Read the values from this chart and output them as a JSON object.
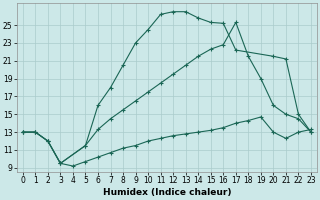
{
  "xlabel": "Humidex (Indice chaleur)",
  "background_color": "#cce8e8",
  "grid_color": "#aacccc",
  "line_color": "#1a6655",
  "line1_x": [
    0,
    1,
    2,
    3,
    5,
    6,
    7,
    8,
    9,
    10,
    11,
    12,
    13,
    14,
    15,
    16,
    17,
    20,
    21,
    22,
    23
  ],
  "line1_y": [
    13.0,
    13.0,
    12.0,
    9.5,
    11.5,
    16.0,
    18.0,
    20.5,
    23.0,
    24.5,
    26.2,
    26.5,
    26.5,
    25.8,
    25.3,
    25.2,
    22.2,
    21.5,
    21.2,
    15.0,
    13.0
  ],
  "line2_x": [
    0,
    1,
    2,
    3,
    5,
    6,
    7,
    8,
    9,
    10,
    11,
    12,
    13,
    14,
    15,
    16,
    17,
    18,
    19,
    20,
    21,
    22,
    23
  ],
  "line2_y": [
    13.0,
    13.0,
    12.0,
    9.5,
    11.5,
    13.3,
    14.5,
    15.5,
    16.5,
    17.5,
    18.5,
    19.5,
    20.5,
    21.5,
    22.3,
    22.8,
    25.3,
    21.5,
    19.0,
    16.0,
    15.0,
    14.5,
    13.0
  ],
  "line3_x": [
    0,
    1,
    2,
    3,
    4,
    5,
    6,
    7,
    8,
    9,
    10,
    11,
    12,
    13,
    14,
    15,
    16,
    17,
    18,
    19,
    20,
    21,
    22,
    23
  ],
  "line3_y": [
    13.0,
    13.0,
    12.0,
    9.5,
    9.2,
    9.7,
    10.2,
    10.7,
    11.2,
    11.5,
    12.0,
    12.3,
    12.6,
    12.8,
    13.0,
    13.2,
    13.5,
    14.0,
    14.3,
    14.7,
    13.0,
    12.3,
    13.0,
    13.3
  ],
  "ylim": [
    8.5,
    27.5
  ],
  "xlim": [
    -0.5,
    23.5
  ],
  "yticks": [
    9,
    11,
    13,
    15,
    17,
    19,
    21,
    23,
    25
  ],
  "xticks": [
    0,
    1,
    2,
    3,
    4,
    5,
    6,
    7,
    8,
    9,
    10,
    11,
    12,
    13,
    14,
    15,
    16,
    17,
    18,
    19,
    20,
    21,
    22,
    23
  ],
  "tick_fontsize": 5.5,
  "xlabel_fontsize": 6.5
}
